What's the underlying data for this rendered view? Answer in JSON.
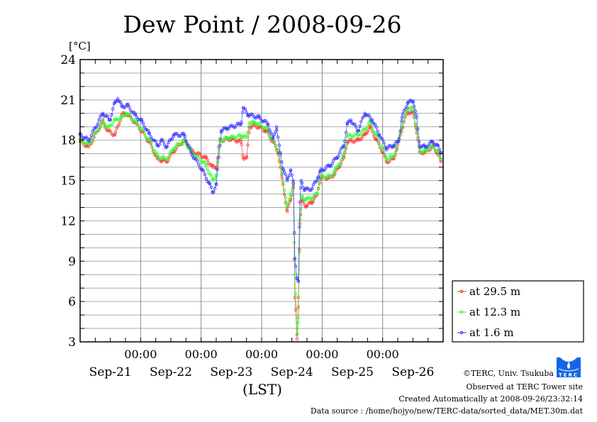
{
  "chart_data": {
    "type": "line",
    "title": "Dew Point / 2008-09-26",
    "ylabel": "[°C]",
    "xlabel": "(LST)",
    "ylim": [
      3,
      24
    ],
    "yticks": [
      3,
      6,
      9,
      12,
      15,
      18,
      21,
      24
    ],
    "x_unit": "hours since Sep-21 00:00",
    "xlim": [
      0,
      144
    ],
    "x_time_labels": [
      "00:00",
      "00:00",
      "00:00",
      "00:00",
      "00:00"
    ],
    "x_time_label_hours": [
      24,
      48,
      72,
      96,
      120
    ],
    "x_date_labels": [
      "Sep-21",
      "Sep-22",
      "Sep-23",
      "Sep-24",
      "Sep-25",
      "Sep-26"
    ],
    "grid": true,
    "legend_position": "right",
    "series": [
      {
        "name": "at 29.5 m",
        "color": "#ff3030",
        "points": [
          [
            0,
            17.9
          ],
          [
            3.4,
            17.5
          ],
          [
            9.0,
            19.4
          ],
          [
            11.0,
            18.7
          ],
          [
            13.8,
            18.4
          ],
          [
            16.6,
            19.9
          ],
          [
            18.3,
            20.0
          ],
          [
            22.5,
            19.2
          ],
          [
            27.3,
            17.9
          ],
          [
            30.7,
            16.6
          ],
          [
            34.3,
            16.4
          ],
          [
            37.1,
            17.2
          ],
          [
            41.3,
            18.0
          ],
          [
            44.2,
            17.2
          ],
          [
            49.8,
            16.7
          ],
          [
            52.6,
            16.0
          ],
          [
            54.0,
            16.0
          ],
          [
            55.4,
            18.0
          ],
          [
            59.6,
            18.1
          ],
          [
            63.8,
            17.9
          ],
          [
            64.7,
            16.7
          ],
          [
            66.1,
            16.7
          ],
          [
            67.2,
            19.0
          ],
          [
            69.5,
            19.1
          ],
          [
            73.7,
            18.7
          ],
          [
            76.5,
            17.9
          ],
          [
            78.5,
            17.1
          ],
          [
            80.1,
            15.2
          ],
          [
            82.1,
            12.7
          ],
          [
            83.5,
            13.6
          ],
          [
            84.6,
            14.6
          ],
          [
            85.2,
            6.3
          ],
          [
            86.1,
            3.2
          ],
          [
            86.6,
            6.3
          ],
          [
            87.2,
            11.8
          ],
          [
            88.0,
            13.5
          ],
          [
            89.7,
            13.1
          ],
          [
            92.0,
            13.4
          ],
          [
            93.9,
            13.9
          ],
          [
            95.3,
            15.2
          ],
          [
            99.0,
            15.2
          ],
          [
            101.0,
            15.5
          ],
          [
            102.6,
            16.0
          ],
          [
            104.6,
            16.7
          ],
          [
            106.0,
            17.9
          ],
          [
            110.2,
            18.0
          ],
          [
            113.0,
            18.4
          ],
          [
            115.0,
            19.0
          ],
          [
            117.3,
            18.1
          ],
          [
            120.1,
            17.1
          ],
          [
            121.5,
            16.4
          ],
          [
            124.3,
            16.6
          ],
          [
            125.7,
            17.4
          ],
          [
            127.7,
            18.9
          ],
          [
            129.9,
            20.1
          ],
          [
            132.2,
            20.0
          ],
          [
            133.3,
            18.9
          ],
          [
            134.7,
            17.1
          ],
          [
            136.9,
            17.1
          ],
          [
            139.8,
            17.5
          ],
          [
            141.7,
            17.1
          ],
          [
            143.1,
            16.4
          ]
        ]
      },
      {
        "name": "at 12.3 m",
        "color": "#30ff30",
        "points": [
          [
            0,
            18.0
          ],
          [
            3.4,
            17.7
          ],
          [
            9.0,
            19.4
          ],
          [
            11.0,
            18.9
          ],
          [
            13.8,
            19.5
          ],
          [
            16.6,
            19.7
          ],
          [
            18.3,
            20.0
          ],
          [
            22.5,
            19.3
          ],
          [
            27.3,
            18.0
          ],
          [
            30.7,
            16.8
          ],
          [
            34.3,
            16.6
          ],
          [
            37.1,
            17.4
          ],
          [
            41.3,
            18.0
          ],
          [
            44.2,
            17.1
          ],
          [
            49.8,
            16.2
          ],
          [
            52.6,
            15.0
          ],
          [
            54.0,
            15.4
          ],
          [
            55.4,
            18.0
          ],
          [
            59.6,
            18.2
          ],
          [
            63.8,
            18.3
          ],
          [
            64.7,
            18.3
          ],
          [
            66.1,
            18.2
          ],
          [
            67.2,
            19.3
          ],
          [
            69.5,
            19.3
          ],
          [
            73.7,
            18.9
          ],
          [
            76.5,
            18.0
          ],
          [
            78.5,
            17.3
          ],
          [
            80.1,
            15.5
          ],
          [
            82.1,
            13.0
          ],
          [
            83.5,
            14.0
          ],
          [
            84.6,
            14.8
          ],
          [
            85.2,
            8.0
          ],
          [
            86.1,
            3.6
          ],
          [
            86.6,
            4.8
          ],
          [
            87.2,
            12.1
          ],
          [
            88.0,
            13.8
          ],
          [
            89.7,
            13.6
          ],
          [
            92.0,
            13.7
          ],
          [
            93.9,
            14.0
          ],
          [
            95.3,
            15.3
          ],
          [
            99.0,
            15.3
          ],
          [
            101.0,
            15.7
          ],
          [
            102.6,
            16.2
          ],
          [
            104.6,
            16.9
          ],
          [
            106.0,
            18.3
          ],
          [
            110.2,
            18.4
          ],
          [
            113.0,
            18.8
          ],
          [
            115.0,
            19.4
          ],
          [
            117.3,
            18.4
          ],
          [
            120.1,
            17.3
          ],
          [
            121.5,
            16.6
          ],
          [
            124.3,
            16.8
          ],
          [
            125.7,
            17.5
          ],
          [
            127.7,
            19.1
          ],
          [
            129.9,
            20.4
          ],
          [
            132.2,
            20.3
          ],
          [
            133.3,
            19.0
          ],
          [
            134.7,
            17.2
          ],
          [
            136.9,
            17.2
          ],
          [
            139.8,
            17.6
          ],
          [
            141.7,
            17.2
          ],
          [
            143.1,
            16.6
          ]
        ]
      },
      {
        "name": "at 1.6 m",
        "color": "#3030ff",
        "points": [
          [
            0,
            18.4
          ],
          [
            3.4,
            18.0
          ],
          [
            9.0,
            20.0
          ],
          [
            11.8,
            19.5
          ],
          [
            13.8,
            20.8
          ],
          [
            14.9,
            21.1
          ],
          [
            16.6,
            20.5
          ],
          [
            18.8,
            20.6
          ],
          [
            21.7,
            19.9
          ],
          [
            24.5,
            19.4
          ],
          [
            27.3,
            18.5
          ],
          [
            30.7,
            17.6
          ],
          [
            32.3,
            18.0
          ],
          [
            34.3,
            17.5
          ],
          [
            37.1,
            18.4
          ],
          [
            41.3,
            18.4
          ],
          [
            44.2,
            17.0
          ],
          [
            48.4,
            15.8
          ],
          [
            51.2,
            14.8
          ],
          [
            52.6,
            14.1
          ],
          [
            54.0,
            14.7
          ],
          [
            56.0,
            18.7
          ],
          [
            58.2,
            18.9
          ],
          [
            63.8,
            19.2
          ],
          [
            64.7,
            20.4
          ],
          [
            66.6,
            19.9
          ],
          [
            70.9,
            19.7
          ],
          [
            74.5,
            19.2
          ],
          [
            76.5,
            18.1
          ],
          [
            77.9,
            19.0
          ],
          [
            79.3,
            17.1
          ],
          [
            80.7,
            15.8
          ],
          [
            82.1,
            15.0
          ],
          [
            83.5,
            15.8
          ],
          [
            84.6,
            14.8
          ],
          [
            85.2,
            9.2
          ],
          [
            86.1,
            7.7
          ],
          [
            86.6,
            7.5
          ],
          [
            87.2,
            13.4
          ],
          [
            87.7,
            15.0
          ],
          [
            89.1,
            14.3
          ],
          [
            92.0,
            14.4
          ],
          [
            94.2,
            15.2
          ],
          [
            95.3,
            15.7
          ],
          [
            99.0,
            16.1
          ],
          [
            101.8,
            16.7
          ],
          [
            104.6,
            17.6
          ],
          [
            106.0,
            19.2
          ],
          [
            107.4,
            19.5
          ],
          [
            110.2,
            18.7
          ],
          [
            113.0,
            20.0
          ],
          [
            115.9,
            19.5
          ],
          [
            118.7,
            18.4
          ],
          [
            121.5,
            17.4
          ],
          [
            124.3,
            17.6
          ],
          [
            126.3,
            17.9
          ],
          [
            127.7,
            19.7
          ],
          [
            129.9,
            20.8
          ],
          [
            132.2,
            20.9
          ],
          [
            133.3,
            19.9
          ],
          [
            134.7,
            17.6
          ],
          [
            136.9,
            17.5
          ],
          [
            139.8,
            17.9
          ],
          [
            141.7,
            17.6
          ],
          [
            143.1,
            17.1
          ]
        ]
      }
    ]
  },
  "footer": {
    "copyright": "©TERC, Univ. Tsukuba",
    "observed": "Observed at TERC Tower site",
    "created": "Created Automatically at 2008-09-26/23:32:14",
    "source": "Data source : /home/hojyo/new/TERC-data/sorted_data/MET.30m.dat",
    "logo_text": "TERC"
  }
}
